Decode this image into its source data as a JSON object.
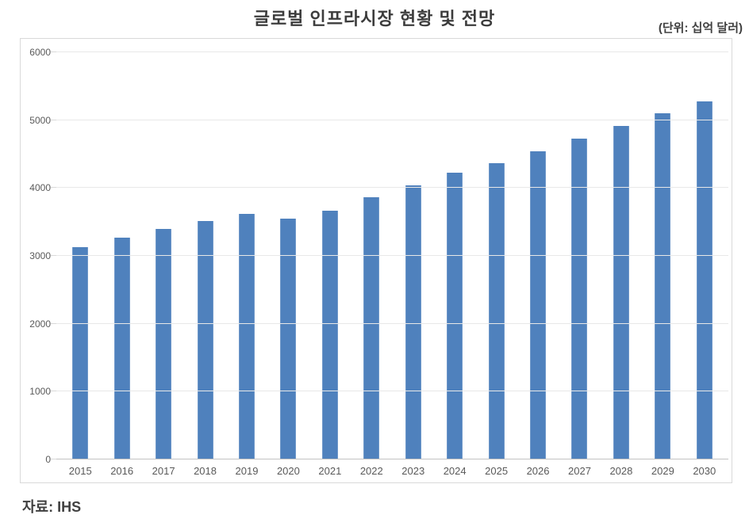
{
  "chart": {
    "title": "글로벌 인프라시장 현황 및 전망",
    "unit_label": "(단위: 십억 달러)",
    "source": "자료: IHS"
  },
  "chart_data": {
    "type": "bar",
    "title": "글로벌 인프라시장 현황 및 전망",
    "unit": "십억 달러",
    "source": "자료: IHS",
    "categories": [
      "2015",
      "2016",
      "2017",
      "2018",
      "2019",
      "2020",
      "2021",
      "2022",
      "2023",
      "2024",
      "2025",
      "2026",
      "2027",
      "2028",
      "2029",
      "2030"
    ],
    "values": [
      3120,
      3260,
      3380,
      3500,
      3610,
      3540,
      3650,
      3850,
      4030,
      4210,
      4350,
      4530,
      4720,
      4900,
      5090,
      5270
    ],
    "xlabel": "",
    "ylabel": "",
    "ylim": [
      0,
      6000
    ],
    "yticks": [
      0,
      1000,
      2000,
      3000,
      4000,
      5000,
      6000
    ],
    "grid": true,
    "legend": false,
    "bar_color": "#4f81bd"
  },
  "colors": {
    "bar": "#4f81bd",
    "gridline": "#e8e8e8",
    "axis_line": "#c3c3c3",
    "chart_border": "#d9d9d9",
    "title_text": "#3c3c3c",
    "tick_text": "#595959"
  }
}
